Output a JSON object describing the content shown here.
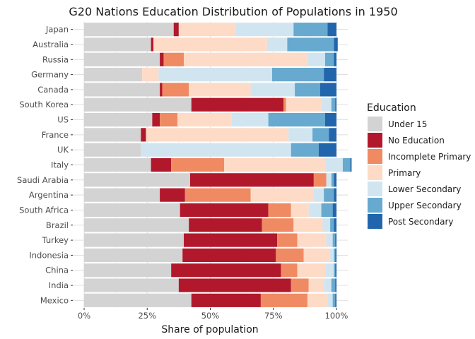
{
  "chart_data": {
    "type": "bar",
    "orientation": "horizontal",
    "stacked": true,
    "title": "G20 Nations Education Distribution of Populations in 1950",
    "xlabel": "Share of population",
    "ylabel": "",
    "xlim": [
      0,
      1
    ],
    "x_ticks": [
      0,
      0.25,
      0.5,
      0.75,
      1.0
    ],
    "x_tick_labels": [
      "0%",
      "25%",
      "50%",
      "75%",
      "100%"
    ],
    "grid": true,
    "legend_title": "Education",
    "legend_position": "right",
    "categories": [
      "Japan",
      "Australia",
      "Russia",
      "Germany",
      "Canada",
      "South Korea",
      "US",
      "France",
      "UK",
      "Italy",
      "Saudi Arabia",
      "Argentina",
      "South Africa",
      "Brazil",
      "Turkey",
      "Indonesia",
      "China",
      "India",
      "Mexico"
    ],
    "series": [
      {
        "name": "Under 15",
        "color": "#d3d3d3",
        "values": [
          0.355,
          0.265,
          0.3,
          0.23,
          0.3,
          0.425,
          0.27,
          0.225,
          0.225,
          0.265,
          0.42,
          0.3,
          0.38,
          0.415,
          0.395,
          0.39,
          0.345,
          0.375,
          0.425
        ]
      },
      {
        "name": "No Education",
        "color": "#b2182b",
        "values": [
          0.02,
          0.01,
          0.015,
          0.0,
          0.01,
          0.365,
          0.03,
          0.02,
          0.0,
          0.08,
          0.49,
          0.1,
          0.35,
          0.29,
          0.37,
          0.37,
          0.435,
          0.445,
          0.275
        ]
      },
      {
        "name": "Incomplete Primary",
        "color": "#ef8a62",
        "values": [
          0.0,
          0.0,
          0.08,
          0.0,
          0.105,
          0.01,
          0.07,
          0.0,
          0.0,
          0.21,
          0.05,
          0.26,
          0.09,
          0.125,
          0.08,
          0.11,
          0.065,
          0.07,
          0.185
        ]
      },
      {
        "name": "Primary",
        "color": "#fddbc7",
        "values": [
          0.225,
          0.45,
          0.49,
          0.065,
          0.245,
          0.14,
          0.215,
          0.565,
          0.0,
          0.4,
          0.0,
          0.25,
          0.07,
          0.115,
          0.115,
          0.105,
          0.11,
          0.06,
          0.08
        ]
      },
      {
        "name": "Lower Secondary",
        "color": "#d1e5f0",
        "values": [
          0.23,
          0.08,
          0.07,
          0.45,
          0.175,
          0.04,
          0.145,
          0.095,
          0.595,
          0.07,
          0.02,
          0.04,
          0.05,
          0.03,
          0.025,
          0.015,
          0.035,
          0.03,
          0.02
        ]
      },
      {
        "name": "Upper Secondary",
        "color": "#67a9cf",
        "values": [
          0.135,
          0.185,
          0.035,
          0.205,
          0.1,
          0.015,
          0.225,
          0.065,
          0.11,
          0.03,
          0.01,
          0.04,
          0.045,
          0.015,
          0.01,
          0.005,
          0.005,
          0.015,
          0.01
        ]
      },
      {
        "name": "Post Secondary",
        "color": "#2166ac",
        "values": [
          0.035,
          0.015,
          0.01,
          0.05,
          0.065,
          0.005,
          0.045,
          0.03,
          0.07,
          0.005,
          0.01,
          0.01,
          0.015,
          0.01,
          0.005,
          0.005,
          0.005,
          0.005,
          0.005
        ]
      }
    ]
  }
}
